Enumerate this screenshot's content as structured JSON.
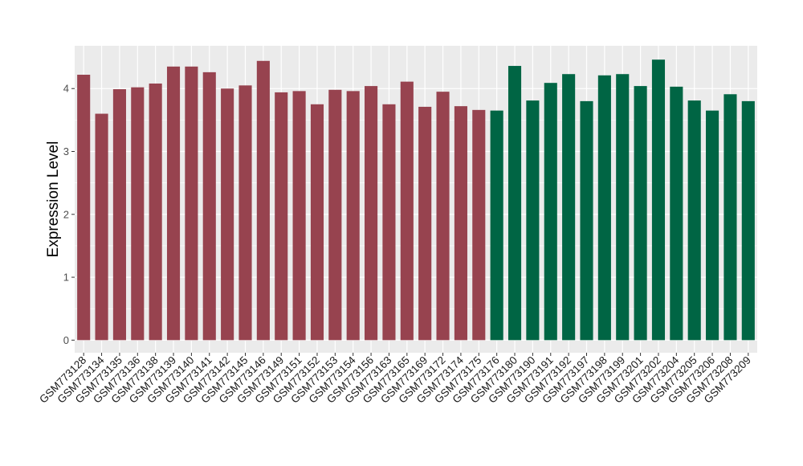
{
  "chart_data": {
    "type": "bar",
    "title": "",
    "xlabel": "",
    "ylabel": "Expression Level",
    "ylim": [
      -0.2,
      4.68
    ],
    "yticks": [
      0,
      1,
      2,
      3,
      4
    ],
    "grid": true,
    "background": "#ebebeb",
    "categories": [
      "GSM773128",
      "GSM773134",
      "GSM773135",
      "GSM773136",
      "GSM773138",
      "GSM773139",
      "GSM773140",
      "GSM773141",
      "GSM773142",
      "GSM773145",
      "GSM773146",
      "GSM773149",
      "GSM773151",
      "GSM773152",
      "GSM773153",
      "GSM773154",
      "GSM773156",
      "GSM773163",
      "GSM773165",
      "GSM773169",
      "GSM773172",
      "GSM773174",
      "GSM773175",
      "GSM773176",
      "GSM773180",
      "GSM773190",
      "GSM773191",
      "GSM773192",
      "GSM773197",
      "GSM773198",
      "GSM773199",
      "GSM773201",
      "GSM773202",
      "GSM773204",
      "GSM773205",
      "GSM773206",
      "GSM773208",
      "GSM773209"
    ],
    "values": [
      4.22,
      3.6,
      3.99,
      4.02,
      4.08,
      4.35,
      4.35,
      4.26,
      4.0,
      4.05,
      4.44,
      3.94,
      3.96,
      3.75,
      3.98,
      3.96,
      4.04,
      3.75,
      4.11,
      3.71,
      3.95,
      3.72,
      3.66,
      3.65,
      4.36,
      3.81,
      4.09,
      4.23,
      3.8,
      4.21,
      4.23,
      4.04,
      4.46,
      4.03,
      3.81,
      3.65,
      3.91,
      3.8
    ],
    "groups": [
      0,
      0,
      0,
      0,
      0,
      0,
      0,
      0,
      0,
      0,
      0,
      0,
      0,
      0,
      0,
      0,
      0,
      0,
      0,
      0,
      0,
      0,
      0,
      1,
      1,
      1,
      1,
      1,
      1,
      1,
      1,
      1,
      1,
      1,
      1,
      1,
      1,
      1
    ],
    "group_colors": [
      "#97434f",
      "#006544"
    ]
  }
}
